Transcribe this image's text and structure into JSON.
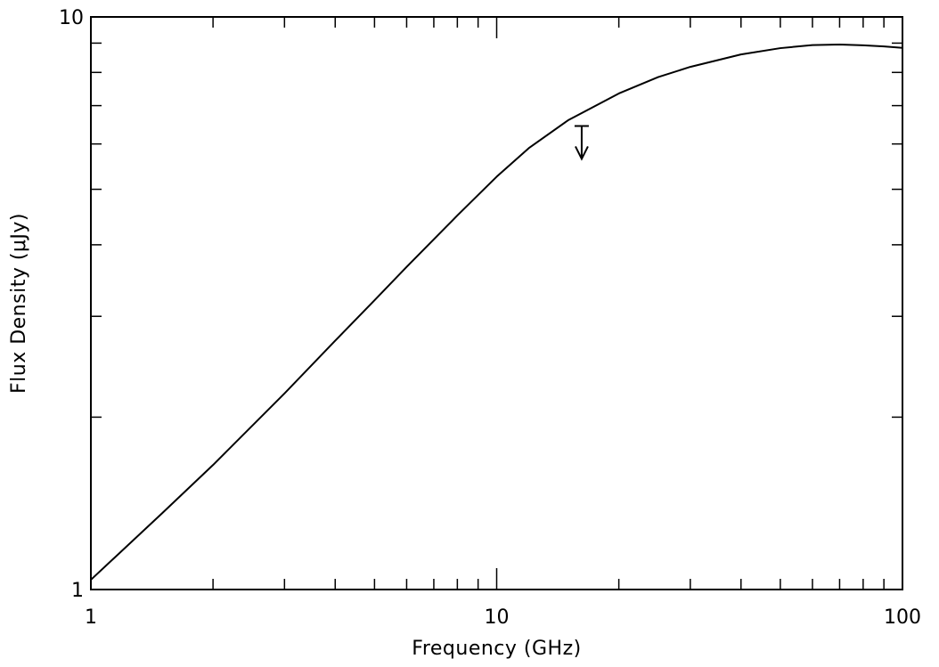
{
  "chart_data": {
    "type": "line",
    "title": "",
    "xlabel": "Frequency (GHz)",
    "ylabel": "Flux Density (μJy)",
    "xscale": "log",
    "yscale": "log",
    "xlim": [
      1,
      100
    ],
    "ylim": [
      1,
      10
    ],
    "x_ticks": [
      {
        "value": 1,
        "label": "1"
      },
      {
        "value": 10,
        "label": "10"
      },
      {
        "value": 100,
        "label": "100"
      }
    ],
    "y_ticks": [
      {
        "value": 1,
        "label": "1"
      },
      {
        "value": 10,
        "label": "10"
      }
    ],
    "grid": false,
    "colors": {
      "line": "#000000",
      "axes": "#000000",
      "background": "#ffffff"
    },
    "series": [
      {
        "x": [
          1,
          1.5,
          2,
          3,
          4,
          5,
          6,
          8,
          10,
          12,
          15,
          20,
          25,
          30,
          40,
          50,
          60,
          70,
          80,
          90,
          100
        ],
        "y": [
          1.04,
          1.36,
          1.65,
          2.2,
          2.72,
          3.2,
          3.66,
          4.5,
          5.26,
          5.9,
          6.6,
          7.35,
          7.85,
          8.18,
          8.6,
          8.82,
          8.93,
          8.95,
          8.92,
          8.88,
          8.83
        ]
      }
    ],
    "upper_limits": [
      {
        "x": 16.2,
        "y_start": 6.45,
        "y_end": 5.65
      }
    ]
  }
}
